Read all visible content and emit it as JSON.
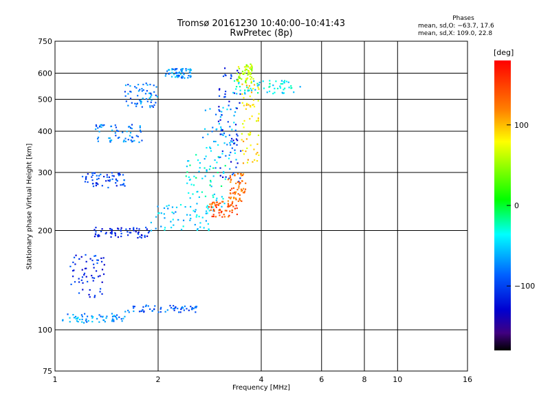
{
  "chart_data": {
    "type": "scatter",
    "title": "Tromsø 20161230 10:40:00–10:41:43",
    "subtitle": "RwPretec (8p)",
    "xlabel": "Frequency [MHz]",
    "ylabel": "Stationary phase Virtual Height [km]",
    "xscale": "log",
    "yscale": "log",
    "xlim": [
      1,
      16
    ],
    "ylim": [
      75,
      750
    ],
    "x_ticks": [
      "1",
      "2",
      "4",
      "6",
      "8",
      "10",
      "16"
    ],
    "y_ticks": [
      "75",
      "100",
      "200",
      "300",
      "400",
      "500",
      "600",
      "750"
    ],
    "grid": true,
    "phase_stats": {
      "heading": "Phases",
      "o_mode": "mean, sd,O: −63.7, 17.6",
      "x_mode": "mean, sd,X: 109.0, 22.8"
    },
    "colorbar": {
      "label": "[deg]",
      "min": -180,
      "max": 180,
      "ticks": [
        "100",
        "0",
        "−100"
      ],
      "tick_values": [
        100,
        0,
        -100
      ]
    },
    "clusters": [
      {
        "x": [
          1.05,
          1.6
        ],
        "y": [
          105,
          112
        ],
        "phase": -70
      },
      {
        "x": [
          1.6,
          2.6
        ],
        "y": [
          113,
          119
        ],
        "phase": -90
      },
      {
        "x": [
          1.3,
          1.9
        ],
        "y": [
          190,
          205
        ],
        "phase": -110
      },
      {
        "x": [
          1.9,
          2.9
        ],
        "y": [
          200,
          240
        ],
        "phase": -55
      },
      {
        "x": [
          2.4,
          3.2
        ],
        "y": [
          235,
          340
        ],
        "phase": -35
      },
      {
        "x": [
          2.7,
          3.4
        ],
        "y": [
          300,
          480
        ],
        "phase": -60
      },
      {
        "x": [
          3.0,
          3.5
        ],
        "y": [
          280,
          640
        ],
        "phase": -110
      },
      {
        "x": [
          2.8,
          3.4
        ],
        "y": [
          220,
          245
        ],
        "phase": 140
      },
      {
        "x": [
          3.2,
          3.6
        ],
        "y": [
          245,
          300
        ],
        "phase": 130
      },
      {
        "x": [
          3.5,
          3.95
        ],
        "y": [
          320,
          560
        ],
        "phase": 90
      },
      {
        "x": [
          3.4,
          3.8
        ],
        "y": [
          560,
          640
        ],
        "phase": 60
      },
      {
        "x": [
          3.3,
          5.2
        ],
        "y": [
          520,
          570
        ],
        "phase": -40
      },
      {
        "x": [
          1.3,
          1.8
        ],
        "y": [
          370,
          420
        ],
        "phase": -80
      },
      {
        "x": [
          1.2,
          1.6
        ],
        "y": [
          270,
          300
        ],
        "phase": -100
      },
      {
        "x": [
          1.1,
          1.4
        ],
        "y": [
          125,
          170
        ],
        "phase": -110
      },
      {
        "x": [
          2.1,
          2.5
        ],
        "y": [
          580,
          620
        ],
        "phase": -70
      },
      {
        "x": [
          1.6,
          2.0
        ],
        "y": [
          470,
          560
        ],
        "phase": -80
      }
    ]
  }
}
